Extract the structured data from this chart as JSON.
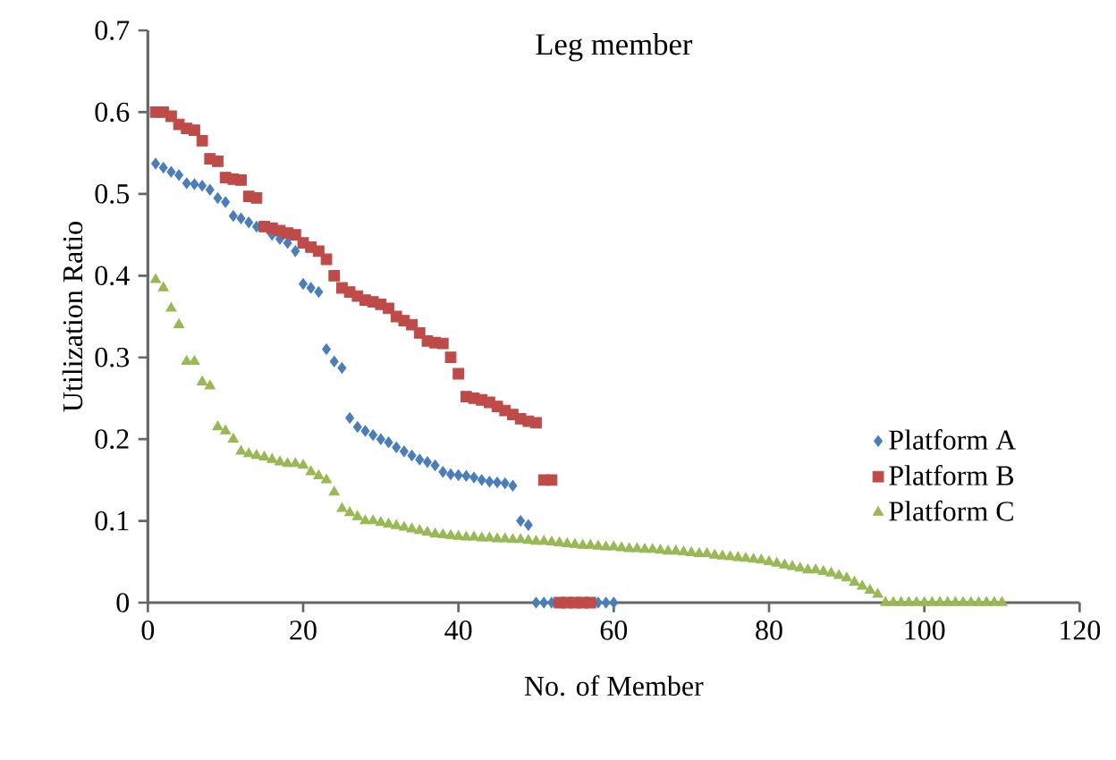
{
  "chart_data": {
    "type": "scatter",
    "title": "Leg member",
    "xlabel": "No. of Member",
    "ylabel": "Utilization Ratio",
    "xlim": [
      0,
      120
    ],
    "xticks": [
      0,
      20,
      40,
      60,
      80,
      100,
      120
    ],
    "ylim": [
      0,
      0.7
    ],
    "yticks": [
      0,
      0.1,
      0.2,
      0.3,
      0.4,
      0.5,
      0.6,
      0.7
    ],
    "grid": false,
    "legend": "right",
    "series": [
      {
        "name": "Platform A",
        "color": "#4a7ebb",
        "marker": "diamond",
        "x": [
          1,
          2,
          3,
          4,
          5,
          6,
          7,
          8,
          9,
          10,
          11,
          12,
          13,
          14,
          15,
          16,
          17,
          18,
          19,
          20,
          21,
          22,
          23,
          24,
          25,
          26,
          27,
          28,
          29,
          30,
          31,
          32,
          33,
          34,
          35,
          36,
          37,
          38,
          39,
          40,
          41,
          42,
          43,
          44,
          45,
          46,
          47,
          48,
          49,
          50,
          51,
          52,
          58,
          59,
          60
        ],
        "values": [
          0.537,
          0.532,
          0.527,
          0.523,
          0.513,
          0.512,
          0.51,
          0.505,
          0.495,
          0.49,
          0.473,
          0.47,
          0.465,
          0.46,
          null,
          0.45,
          0.445,
          0.44,
          0.43,
          0.39,
          0.385,
          0.38,
          0.31,
          0.295,
          0.287,
          0.226,
          0.215,
          0.21,
          0.205,
          0.2,
          0.196,
          0.19,
          0.185,
          0.18,
          0.175,
          0.172,
          0.168,
          0.16,
          0.157,
          0.156,
          0.155,
          0.153,
          0.15,
          0.148,
          0.147,
          0.146,
          0.143,
          0.1,
          0.095,
          0,
          0,
          0,
          0,
          0,
          0
        ]
      },
      {
        "name": "Platform B",
        "color": "#be4b48",
        "marker": "square",
        "x": [
          1,
          2,
          3,
          4,
          5,
          6,
          7,
          8,
          9,
          10,
          11,
          12,
          13,
          14,
          15,
          16,
          17,
          18,
          19,
          20,
          21,
          22,
          23,
          24,
          25,
          26,
          27,
          28,
          29,
          30,
          31,
          32,
          33,
          34,
          35,
          36,
          37,
          38,
          39,
          40,
          41,
          42,
          43,
          44,
          45,
          46,
          47,
          48,
          49,
          50,
          51,
          52,
          53,
          54,
          55,
          56,
          57
        ],
        "values": [
          0.6,
          0.6,
          0.595,
          0.585,
          0.58,
          0.578,
          0.565,
          0.543,
          0.54,
          0.52,
          0.518,
          0.517,
          0.497,
          0.495,
          0.46,
          0.458,
          0.455,
          0.452,
          0.45,
          0.44,
          0.435,
          0.43,
          0.42,
          0.4,
          0.385,
          0.38,
          0.375,
          0.37,
          0.368,
          0.365,
          0.36,
          0.35,
          0.345,
          0.34,
          0.33,
          0.32,
          0.318,
          0.317,
          0.3,
          0.28,
          0.252,
          0.25,
          0.248,
          0.245,
          0.24,
          0.235,
          0.23,
          0.225,
          0.222,
          0.22,
          0.15,
          0.15,
          0,
          0,
          0,
          0,
          0
        ]
      },
      {
        "name": "Platform C",
        "color": "#98b954",
        "marker": "triangle",
        "x": [
          1,
          2,
          3,
          4,
          5,
          6,
          7,
          8,
          9,
          10,
          11,
          12,
          13,
          14,
          15,
          16,
          17,
          18,
          19,
          20,
          21,
          22,
          23,
          24,
          25,
          26,
          27,
          28,
          29,
          30,
          31,
          32,
          33,
          34,
          35,
          36,
          37,
          38,
          39,
          40,
          41,
          42,
          43,
          44,
          45,
          46,
          47,
          48,
          49,
          50,
          51,
          52,
          53,
          54,
          55,
          56,
          57,
          58,
          59,
          60,
          61,
          62,
          63,
          64,
          65,
          66,
          67,
          68,
          69,
          70,
          71,
          72,
          73,
          74,
          75,
          76,
          77,
          78,
          79,
          80,
          81,
          82,
          83,
          84,
          85,
          86,
          87,
          88,
          89,
          90,
          91,
          92,
          93,
          94,
          95,
          96,
          97,
          98,
          99,
          100,
          101,
          102,
          103,
          104,
          105,
          106,
          107,
          108,
          109,
          110
        ],
        "values": [
          0.395,
          0.385,
          0.36,
          0.34,
          0.295,
          0.295,
          0.27,
          0.265,
          0.215,
          0.21,
          0.2,
          0.185,
          0.182,
          0.18,
          0.178,
          0.175,
          0.172,
          0.17,
          0.17,
          0.168,
          0.16,
          0.155,
          0.15,
          0.135,
          0.115,
          0.11,
          0.105,
          0.1,
          0.1,
          0.098,
          0.096,
          0.094,
          0.092,
          0.09,
          0.088,
          0.086,
          0.084,
          0.083,
          0.082,
          0.081,
          0.08,
          0.08,
          0.079,
          0.079,
          0.078,
          0.078,
          0.077,
          0.077,
          0.076,
          0.075,
          0.075,
          0.074,
          0.073,
          0.072,
          0.071,
          0.07,
          0.07,
          0.069,
          0.068,
          0.068,
          0.067,
          0.066,
          0.066,
          0.065,
          0.065,
          0.064,
          0.063,
          0.063,
          0.062,
          0.061,
          0.06,
          0.06,
          0.058,
          0.057,
          0.056,
          0.055,
          0.054,
          0.053,
          0.052,
          0.05,
          0.048,
          0.046,
          0.044,
          0.042,
          0.04,
          0.04,
          0.038,
          0.036,
          0.033,
          0.03,
          0.025,
          0.02,
          0.015,
          0.01,
          0,
          0,
          0,
          0,
          0,
          0,
          0,
          0,
          0,
          0,
          0,
          0,
          0,
          0,
          0,
          0
        ]
      }
    ]
  }
}
